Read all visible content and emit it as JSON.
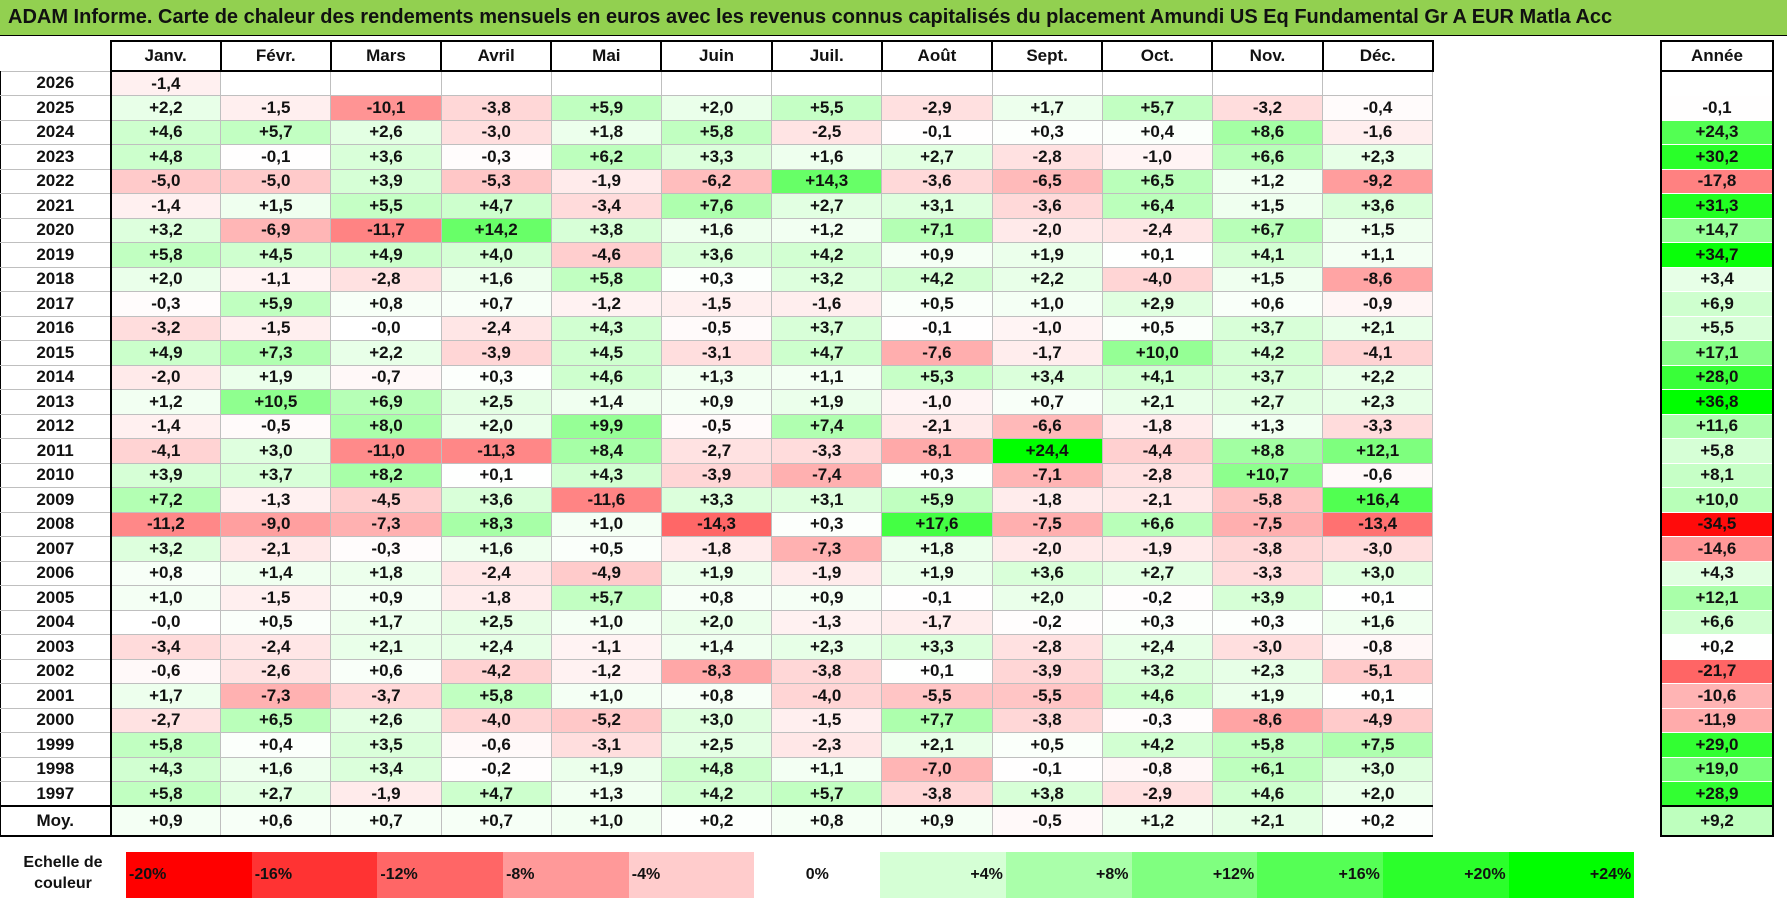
{
  "title": "ADAM Informe. Carte de chaleur des rendements mensuels en euros avec les revenus connus capitalisés du placement Amundi US Eq Fundamental Gr A EUR Matla Acc",
  "chart_data": {
    "type": "heatmap",
    "title": "ADAM Informe. Carte de chaleur des rendements mensuels en euros avec les revenus connus capitalisés du placement Amundi US Eq Fundamental Gr A EUR Matla Acc",
    "months": [
      "Janv.",
      "Févr.",
      "Mars",
      "Avril",
      "Mai",
      "Juin",
      "Juil.",
      "Août",
      "Sept.",
      "Oct.",
      "Nov.",
      "Déc."
    ],
    "annual_header": "Année",
    "rows": [
      {
        "year": "2026",
        "values": [
          "-1,4",
          "",
          "",
          "",
          "",
          "",
          "",
          "",
          "",
          "",
          "",
          ""
        ],
        "annual": ""
      },
      {
        "year": "2025",
        "values": [
          "+2,2",
          "-1,5",
          "-10,1",
          "-3,8",
          "+5,9",
          "+2,0",
          "+5,5",
          "-2,9",
          "+1,7",
          "+5,7",
          "-3,2",
          "-0,4"
        ],
        "annual": "-0,1"
      },
      {
        "year": "2024",
        "values": [
          "+4,6",
          "+5,7",
          "+2,6",
          "-3,0",
          "+1,8",
          "+5,8",
          "-2,5",
          "-0,1",
          "+0,3",
          "+0,4",
          "+8,6",
          "-1,6"
        ],
        "annual": "+24,3"
      },
      {
        "year": "2023",
        "values": [
          "+4,8",
          "-0,1",
          "+3,6",
          "-0,3",
          "+6,2",
          "+3,3",
          "+1,6",
          "+2,7",
          "-2,8",
          "-1,0",
          "+6,6",
          "+2,3"
        ],
        "annual": "+30,2"
      },
      {
        "year": "2022",
        "values": [
          "-5,0",
          "-5,0",
          "+3,9",
          "-5,3",
          "-1,9",
          "-6,2",
          "+14,3",
          "-3,6",
          "-6,5",
          "+6,5",
          "+1,2",
          "-9,2"
        ],
        "annual": "-17,8"
      },
      {
        "year": "2021",
        "values": [
          "-1,4",
          "+1,5",
          "+5,5",
          "+4,7",
          "-3,4",
          "+7,6",
          "+2,7",
          "+3,1",
          "-3,6",
          "+6,4",
          "+1,5",
          "+3,6"
        ],
        "annual": "+31,3"
      },
      {
        "year": "2020",
        "values": [
          "+3,2",
          "-6,9",
          "-11,7",
          "+14,2",
          "+3,8",
          "+1,6",
          "+1,2",
          "+7,1",
          "-2,0",
          "-2,4",
          "+6,7",
          "+1,5"
        ],
        "annual": "+14,7"
      },
      {
        "year": "2019",
        "values": [
          "+5,8",
          "+4,5",
          "+4,9",
          "+4,0",
          "-4,6",
          "+3,6",
          "+4,2",
          "+0,9",
          "+1,9",
          "+0,1",
          "+4,1",
          "+1,1"
        ],
        "annual": "+34,7"
      },
      {
        "year": "2018",
        "values": [
          "+2,0",
          "-1,1",
          "-2,8",
          "+1,6",
          "+5,8",
          "+0,3",
          "+3,2",
          "+4,2",
          "+2,2",
          "-4,0",
          "+1,5",
          "-8,6"
        ],
        "annual": "+3,4"
      },
      {
        "year": "2017",
        "values": [
          "-0,3",
          "+5,9",
          "+0,8",
          "+0,7",
          "-1,2",
          "-1,5",
          "-1,6",
          "+0,5",
          "+1,0",
          "+2,9",
          "+0,6",
          "-0,9"
        ],
        "annual": "+6,9"
      },
      {
        "year": "2016",
        "values": [
          "-3,2",
          "-1,5",
          "-0,0",
          "-2,4",
          "+4,3",
          "-0,5",
          "+3,7",
          "-0,1",
          "-1,0",
          "+0,5",
          "+3,7",
          "+2,1"
        ],
        "annual": "+5,5"
      },
      {
        "year": "2015",
        "values": [
          "+4,9",
          "+7,3",
          "+2,2",
          "-3,9",
          "+4,5",
          "-3,1",
          "+4,7",
          "-7,6",
          "-1,7",
          "+10,0",
          "+4,2",
          "-4,1"
        ],
        "annual": "+17,1"
      },
      {
        "year": "2014",
        "values": [
          "-2,0",
          "+1,9",
          "-0,7",
          "+0,3",
          "+4,6",
          "+1,3",
          "+1,1",
          "+5,3",
          "+3,4",
          "+4,1",
          "+3,7",
          "+2,2"
        ],
        "annual": "+28,0"
      },
      {
        "year": "2013",
        "values": [
          "+1,2",
          "+10,5",
          "+6,9",
          "+2,5",
          "+1,4",
          "+0,9",
          "+1,9",
          "-1,0",
          "+0,7",
          "+2,1",
          "+2,7",
          "+2,3"
        ],
        "annual": "+36,8"
      },
      {
        "year": "2012",
        "values": [
          "-1,4",
          "-0,5",
          "+8,0",
          "+2,0",
          "+9,9",
          "-0,5",
          "+7,4",
          "-2,1",
          "-6,6",
          "-1,8",
          "+1,3",
          "-3,3"
        ],
        "annual": "+11,6"
      },
      {
        "year": "2011",
        "values": [
          "-4,1",
          "+3,0",
          "-11,0",
          "-11,3",
          "+8,4",
          "-2,7",
          "-3,3",
          "-8,1",
          "+24,4",
          "-4,4",
          "+8,8",
          "+12,1"
        ],
        "annual": "+5,8"
      },
      {
        "year": "2010",
        "values": [
          "+3,9",
          "+3,7",
          "+8,2",
          "+0,1",
          "+4,3",
          "-3,9",
          "-7,4",
          "+0,3",
          "-7,1",
          "-2,8",
          "+10,7",
          "-0,6"
        ],
        "annual": "+8,1"
      },
      {
        "year": "2009",
        "values": [
          "+7,2",
          "-1,3",
          "-4,5",
          "+3,6",
          "-11,6",
          "+3,3",
          "+3,1",
          "+5,9",
          "-1,8",
          "-2,1",
          "-5,8",
          "+16,4"
        ],
        "annual": "+10,0"
      },
      {
        "year": "2008",
        "values": [
          "-11,2",
          "-9,0",
          "-7,3",
          "+8,3",
          "+1,0",
          "-14,3",
          "+0,3",
          "+17,6",
          "-7,5",
          "+6,6",
          "-7,5",
          "-13,4"
        ],
        "annual": "-34,5"
      },
      {
        "year": "2007",
        "values": [
          "+3,2",
          "-2,1",
          "-0,3",
          "+1,6",
          "+0,5",
          "-1,8",
          "-7,3",
          "+1,8",
          "-2,0",
          "-1,9",
          "-3,8",
          "-3,0"
        ],
        "annual": "-14,6"
      },
      {
        "year": "2006",
        "values": [
          "+0,8",
          "+1,4",
          "+1,8",
          "-2,4",
          "-4,9",
          "+1,9",
          "-1,9",
          "+1,9",
          "+3,6",
          "+2,7",
          "-3,3",
          "+3,0"
        ],
        "annual": "+4,3"
      },
      {
        "year": "2005",
        "values": [
          "+1,0",
          "-1,5",
          "+0,9",
          "-1,8",
          "+5,7",
          "+0,8",
          "+0,9",
          "-0,1",
          "+2,0",
          "-0,2",
          "+3,9",
          "+0,1"
        ],
        "annual": "+12,1"
      },
      {
        "year": "2004",
        "values": [
          "-0,0",
          "+0,5",
          "+1,7",
          "+2,5",
          "+1,0",
          "+2,0",
          "-1,3",
          "-1,7",
          "-0,2",
          "+0,3",
          "+0,3",
          "+1,6"
        ],
        "annual": "+6,6"
      },
      {
        "year": "2003",
        "values": [
          "-3,4",
          "-2,4",
          "+2,1",
          "+2,4",
          "-1,1",
          "+1,4",
          "+2,3",
          "+3,3",
          "-2,8",
          "+2,4",
          "-3,0",
          "-0,8"
        ],
        "annual": "+0,2"
      },
      {
        "year": "2002",
        "values": [
          "-0,6",
          "-2,6",
          "+0,6",
          "-4,2",
          "-1,2",
          "-8,3",
          "-3,8",
          "+0,1",
          "-3,9",
          "+3,2",
          "+2,3",
          "-5,1"
        ],
        "annual": "-21,7"
      },
      {
        "year": "2001",
        "values": [
          "+1,7",
          "-7,3",
          "-3,7",
          "+5,8",
          "+1,0",
          "+0,8",
          "-4,0",
          "-5,5",
          "-5,5",
          "+4,6",
          "+1,9",
          "+0,1"
        ],
        "annual": "-10,6"
      },
      {
        "year": "2000",
        "values": [
          "-2,7",
          "+6,5",
          "+2,6",
          "-4,0",
          "-5,2",
          "+3,0",
          "-1,5",
          "+7,7",
          "-3,8",
          "-0,3",
          "-8,6",
          "-4,9"
        ],
        "annual": "-11,9"
      },
      {
        "year": "1999",
        "values": [
          "+5,8",
          "+0,4",
          "+3,5",
          "-0,6",
          "-3,1",
          "+2,5",
          "-2,3",
          "+2,1",
          "+0,5",
          "+4,2",
          "+5,8",
          "+7,5"
        ],
        "annual": "+29,0"
      },
      {
        "year": "1998",
        "values": [
          "+4,3",
          "+1,6",
          "+3,4",
          "-0,2",
          "+1,9",
          "+4,8",
          "+1,1",
          "-7,0",
          "-0,1",
          "-0,8",
          "+6,1",
          "+3,0"
        ],
        "annual": "+19,0"
      },
      {
        "year": "1997",
        "values": [
          "+5,8",
          "+2,7",
          "-1,9",
          "+4,7",
          "+1,3",
          "+4,2",
          "+5,7",
          "-3,8",
          "+3,8",
          "-2,9",
          "+4,6",
          "+2,0"
        ],
        "annual": "+28,9"
      }
    ],
    "average": {
      "label": "Moy.",
      "values": [
        "+0,9",
        "+0,6",
        "+0,7",
        "+0,7",
        "+1,0",
        "+0,2",
        "+0,8",
        "+0,9",
        "-0,5",
        "+1,2",
        "+2,1",
        "+0,2"
      ],
      "annual": "+9,2"
    },
    "scale": {
      "label_line1": "Echelle de",
      "label_line2": "couleur",
      "entries": [
        {
          "text": "-20%",
          "value": -20
        },
        {
          "text": "-16%",
          "value": -16
        },
        {
          "text": "-12%",
          "value": -12
        },
        {
          "text": "-8%",
          "value": -8
        },
        {
          "text": "-4%",
          "value": -4
        },
        {
          "text": "0%",
          "value": 0
        },
        {
          "text": "+4%",
          "value": 4
        },
        {
          "text": "+8%",
          "value": 8
        },
        {
          "text": "+12%",
          "value": 12
        },
        {
          "text": "+16%",
          "value": 16
        },
        {
          "text": "+20%",
          "value": 20
        },
        {
          "text": "+24%",
          "value": 24
        }
      ]
    },
    "colors": {
      "title_bar": "#92d050",
      "negative_max": "#ff0000",
      "neutral": "#ffffff",
      "positive_max": "#00ff00"
    }
  }
}
